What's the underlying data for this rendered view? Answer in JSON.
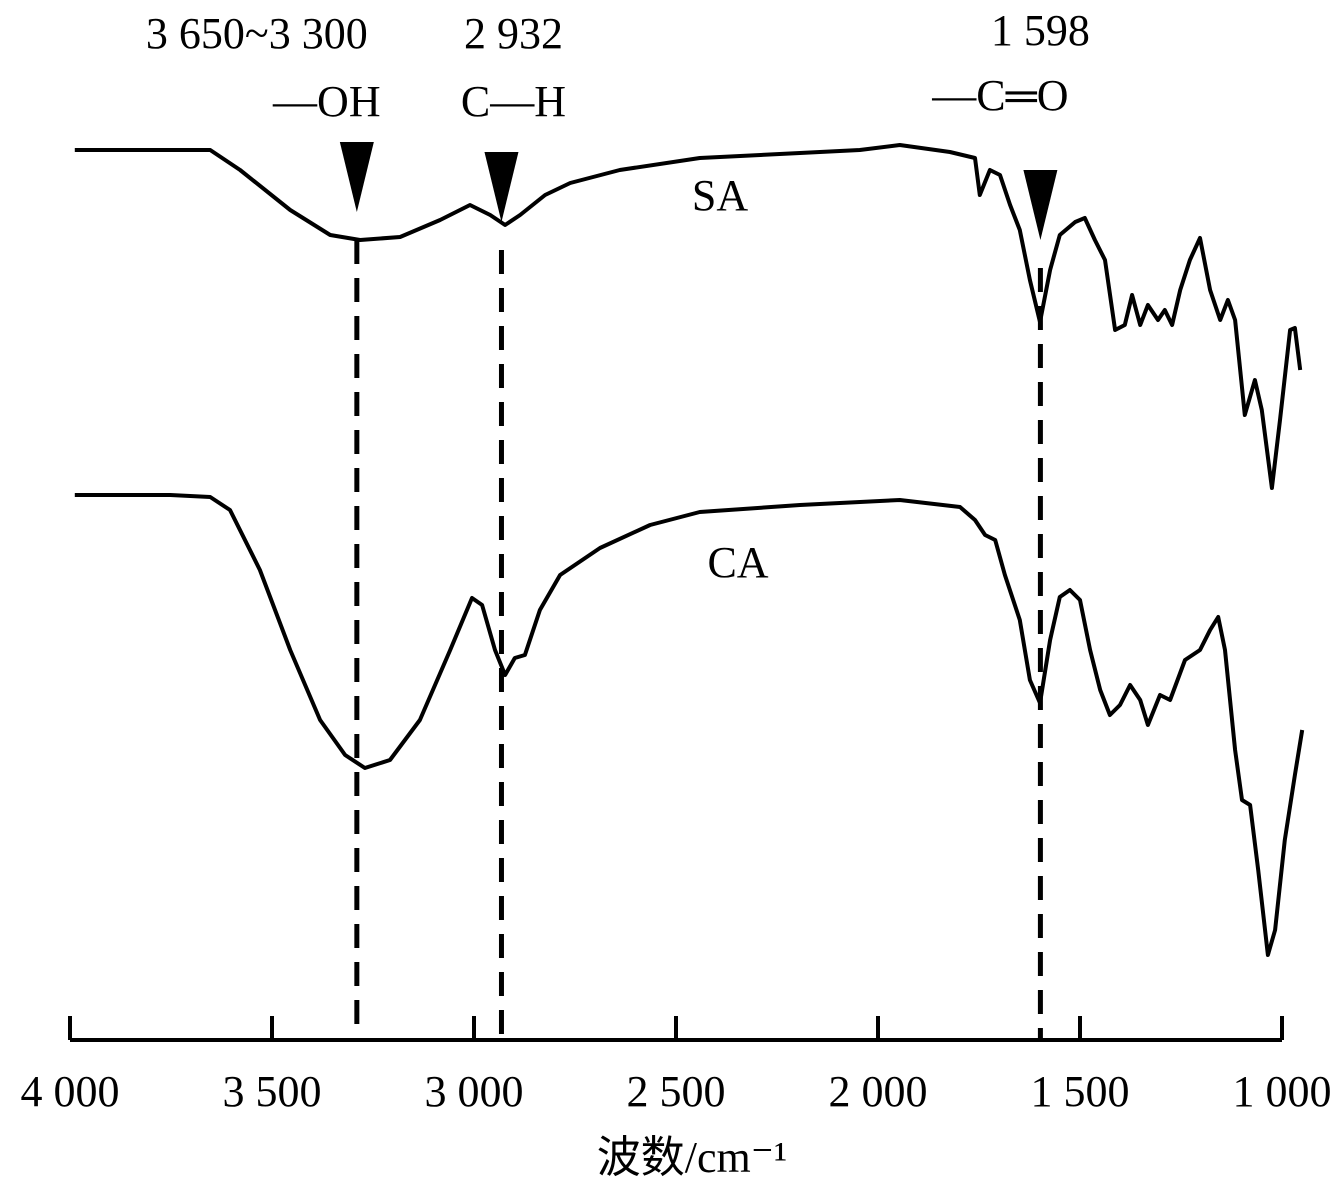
{
  "chart_data": {
    "type": "line",
    "xlabel": "波数/cm⁻¹",
    "xlim": [
      4000,
      1000
    ],
    "ylim": [
      0,
      100
    ],
    "xticks": [
      {
        "value": 4000,
        "label": "4 000"
      },
      {
        "value": 3500,
        "label": "3 500"
      },
      {
        "value": 3000,
        "label": "3 000"
      },
      {
        "value": 2500,
        "label": "2 500"
      },
      {
        "value": 2000,
        "label": "2 000"
      },
      {
        "value": 1500,
        "label": "1 500"
      },
      {
        "value": 1000,
        "label": "1 000"
      }
    ],
    "annotations": [
      {
        "x": 3290,
        "lines": [
          "3 650~3 300",
          "—OH"
        ]
      },
      {
        "x": 2932,
        "lines": [
          "2 932",
          "C—H"
        ]
      },
      {
        "x": 1598,
        "lines": [
          "1 598",
          "—C═O"
        ]
      }
    ],
    "series": [
      {
        "name": "SA",
        "color": "#000000",
        "x": [
          3988,
          3653,
          3579,
          3455,
          3356,
          3282,
          3183,
          3084,
          3010,
          2960,
          2923,
          2886,
          2824,
          2762,
          2639,
          2441,
          2193,
          2045,
          1946,
          1822,
          1760,
          1748,
          1723,
          1698,
          1673,
          1649,
          1624,
          1599,
          1574,
          1550,
          1512,
          1488,
          1463,
          1438,
          1413,
          1389,
          1371,
          1351,
          1332,
          1307,
          1290,
          1272,
          1252,
          1228,
          1203,
          1178,
          1153,
          1134,
          1116,
          1092,
          1067,
          1050,
          1025,
          1005,
          980,
          968,
          955
        ],
        "values": [
          89,
          89,
          87,
          83,
          80.5,
          80,
          80.3,
          82,
          83.5,
          82.5,
          81.5,
          82.5,
          84.5,
          85.7,
          87,
          88.2,
          88.7,
          89,
          89.5,
          88.8,
          88.2,
          84.5,
          87,
          86.5,
          83.5,
          81,
          76,
          71.8,
          77,
          80.5,
          81.8,
          82.2,
          80,
          78,
          71,
          71.5,
          74.5,
          71.5,
          73.5,
          72,
          73,
          71.5,
          75,
          78,
          80.2,
          75,
          72,
          74,
          72,
          62.5,
          66,
          63,
          55.2,
          62,
          71,
          71.2,
          67
        ]
      },
      {
        "name": "CA",
        "color": "#000000",
        "x": [
          3988,
          3752,
          3653,
          3604,
          3530,
          3455,
          3381,
          3319,
          3270,
          3208,
          3134,
          3059,
          3005,
          2980,
          2948,
          2923,
          2899,
          2874,
          2837,
          2787,
          2688,
          2564,
          2441,
          2193,
          1946,
          1797,
          1760,
          1735,
          1710,
          1686,
          1649,
          1624,
          1599,
          1574,
          1550,
          1525,
          1500,
          1475,
          1450,
          1426,
          1401,
          1376,
          1351,
          1332,
          1302,
          1277,
          1240,
          1203,
          1178,
          1158,
          1141,
          1116,
          1099,
          1079,
          1059,
          1035,
          1017,
          993,
          968,
          950
        ],
        "values": [
          54.5,
          54.5,
          54.3,
          53,
          47,
          39,
          32,
          28.5,
          27.2,
          28,
          32,
          39,
          44.2,
          43.5,
          39,
          36.5,
          38.2,
          38.5,
          43,
          46.5,
          49.2,
          51.5,
          52.8,
          53.5,
          54,
          53.3,
          52,
          50.5,
          50,
          46.5,
          42,
          36,
          33.7,
          40,
          44.3,
          45,
          44,
          39,
          35,
          32.5,
          33.5,
          35.5,
          34,
          31.5,
          34.5,
          34,
          38,
          39,
          41,
          42.3,
          39,
          29,
          24,
          23.5,
          17,
          8.5,
          11,
          20,
          26.5,
          31
        ]
      }
    ]
  }
}
